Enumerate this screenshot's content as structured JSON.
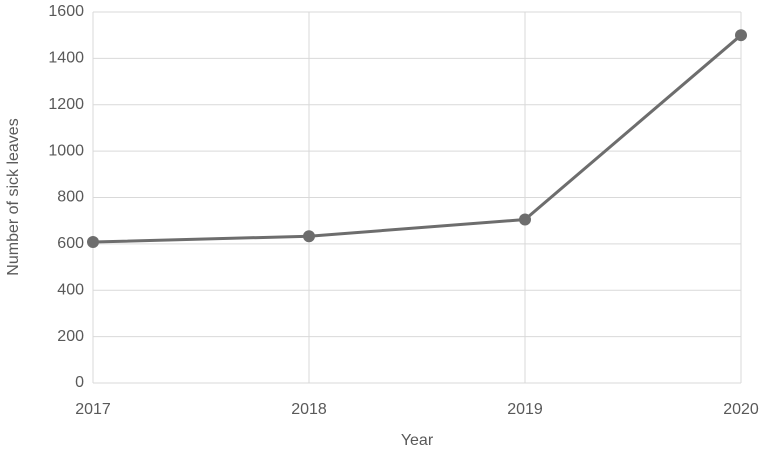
{
  "chart_data": {
    "type": "line",
    "x_label": "Year",
    "y_label": "Number of sick leaves",
    "x": [
      2017,
      2018,
      2019,
      2020
    ],
    "values": [
      608,
      633,
      705,
      1500
    ],
    "color": "#6d6d6d",
    "xlim": [
      2017,
      2020
    ],
    "xticks": [
      2017,
      2018,
      2019,
      2020
    ],
    "ylim": [
      0,
      1600
    ],
    "yticks": [
      0,
      200,
      400,
      600,
      800,
      1000,
      1200,
      1400,
      1600
    ],
    "grid": true
  }
}
